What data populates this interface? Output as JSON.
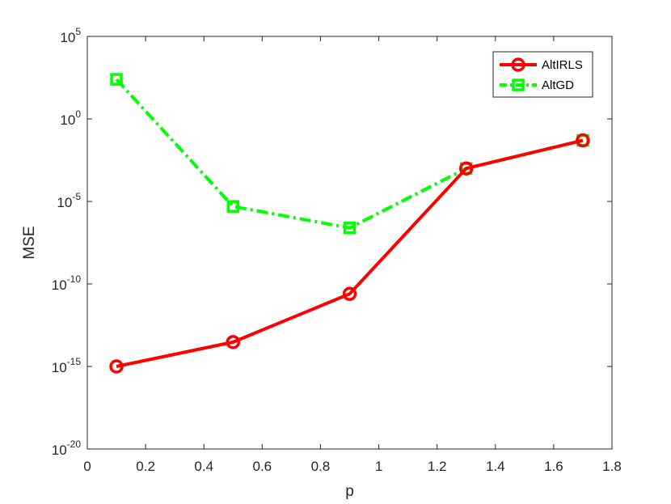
{
  "chart_data": {
    "type": "line",
    "title": "",
    "xlabel": "p",
    "ylabel": "MSE",
    "yscale": "log",
    "xlim": [
      0,
      1.8
    ],
    "ylim": [
      1e-20,
      100000.0
    ],
    "x_ticks": [
      "0",
      "0.2",
      "0.4",
      "0.6",
      "0.8",
      "1",
      "1.2",
      "1.4",
      "1.6",
      "1.8"
    ],
    "y_ticks": [
      {
        "base": "10",
        "exp": "-20"
      },
      {
        "base": "10",
        "exp": "-15"
      },
      {
        "base": "10",
        "exp": "-10"
      },
      {
        "base": "10",
        "exp": "-5"
      },
      {
        "base": "10",
        "exp": "0"
      },
      {
        "base": "10",
        "exp": "5"
      }
    ],
    "grid": false,
    "legend_position": "top-right",
    "x": [
      0.1,
      0.5,
      0.9,
      1.3,
      1.7
    ],
    "series": [
      {
        "name": "AltIRLS",
        "color": "#ff0000",
        "line_style": "solid",
        "marker": "circle",
        "values": [
          1e-15,
          3e-14,
          2.5e-11,
          0.001,
          0.05
        ]
      },
      {
        "name": "AltGD",
        "color": "#00ff00",
        "line_style": "dash-dot",
        "marker": "square",
        "values": [
          250.0,
          5e-06,
          2.5e-07,
          0.001,
          0.05
        ]
      }
    ]
  }
}
